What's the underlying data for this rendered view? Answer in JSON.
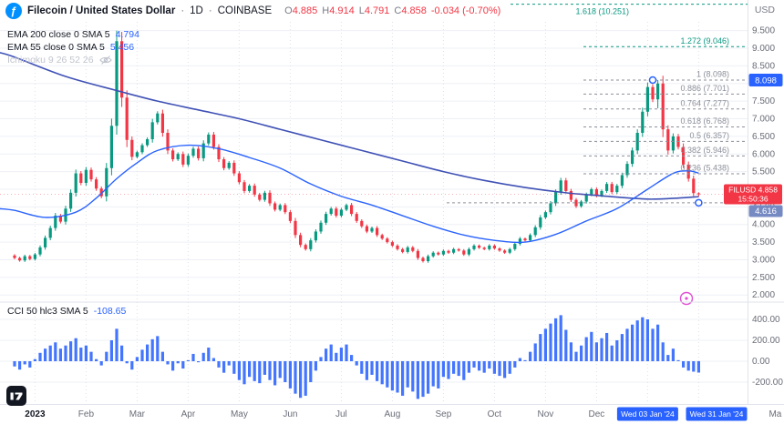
{
  "header": {
    "logo_glyph": "ƒ",
    "title": "Filecoin / United States Dollar",
    "dot1": "·",
    "timeframe": "1D",
    "dot2": "·",
    "exchange": "COINBASE",
    "ohlc": {
      "o_label": "O",
      "o": "4.885",
      "h_label": "H",
      "h": "4.914",
      "l_label": "L",
      "l": "4.791",
      "c_label": "C",
      "c": "4.858",
      "change": "-0.034 (-0.70%)"
    },
    "currency": "USD"
  },
  "legend": {
    "ema200": {
      "text": "EMA 200 close 0 SMA 5",
      "value": "4.794"
    },
    "ema55": {
      "text": "EMA 55 close 0 SMA 5",
      "value": "5.456"
    },
    "ichimoku": {
      "text": "Ichimoku 9 26 52 26"
    },
    "cci": {
      "text": "CCI 50 hlc3 SMA 5",
      "value": "-108.65"
    }
  },
  "colors": {
    "up": "#089981",
    "down": "#f23645",
    "ema55": "#2962ff",
    "ema200": "#3f51b5",
    "cci": "#2962ff",
    "grid": "#eef0f6",
    "grid_v": "#dfe2ea",
    "border": "#e0e3eb",
    "axis_text": "#6a6d78",
    "fib_gray": "#8c8f9a",
    "fib_green": "#089981",
    "badge_blue": "#2962ff",
    "badge_red": "#f23645",
    "badge_fib0": "#7589c2",
    "time_badge": "#2962ff",
    "marker_magenta": "#e04fd4"
  },
  "chart_data": {
    "type": "candlestick",
    "symbol": "FILUSD",
    "timeframe": "1D",
    "exchange": "COINBASE",
    "last_price": 4.858,
    "countdown": "15:50:36",
    "price_axis_range": [
      2.0,
      9.5
    ],
    "price_ticks": [
      "9.500",
      "9.000",
      "8.500",
      "8.000",
      "7.500",
      "7.000",
      "6.500",
      "6.000",
      "5.500",
      "5.000",
      "4.500",
      "4.000",
      "3.500",
      "3.000",
      "2.500",
      "2.000"
    ],
    "cci_ticks": [
      "400.00",
      "200.00",
      "0.00",
      "-200.00"
    ],
    "first_open": 3.12,
    "closes": [
      3.05,
      2.98,
      3.1,
      3.02,
      3.15,
      3.35,
      3.62,
      3.9,
      4.25,
      4.08,
      4.45,
      4.9,
      5.45,
      5.18,
      5.55,
      5.28,
      5.02,
      4.8,
      5.6,
      6.8,
      9.2,
      7.6,
      6.4,
      5.92,
      6.05,
      6.25,
      6.42,
      6.9,
      7.15,
      6.6,
      6.1,
      5.85,
      6.0,
      5.7,
      5.95,
      6.15,
      5.88,
      6.3,
      6.55,
      6.2,
      5.85,
      5.6,
      5.75,
      5.45,
      5.2,
      4.95,
      5.1,
      4.85,
      4.7,
      4.9,
      4.6,
      4.42,
      4.55,
      4.35,
      4.1,
      3.7,
      3.42,
      3.3,
      3.55,
      3.8,
      4.05,
      4.3,
      4.45,
      4.25,
      4.42,
      4.55,
      4.3,
      4.1,
      3.95,
      3.8,
      3.9,
      3.7,
      3.6,
      3.5,
      3.4,
      3.3,
      3.22,
      3.35,
      3.25,
      3.05,
      2.96,
      3.1,
      3.2,
      3.15,
      3.25,
      3.2,
      3.3,
      3.26,
      3.15,
      3.3,
      3.4,
      3.34,
      3.3,
      3.4,
      3.32,
      3.26,
      3.2,
      3.3,
      3.45,
      3.6,
      3.55,
      3.7,
      3.92,
      4.2,
      4.35,
      4.6,
      4.92,
      5.25,
      4.95,
      4.7,
      4.52,
      4.65,
      4.85,
      5.0,
      4.82,
      4.95,
      5.15,
      4.92,
      5.1,
      5.4,
      5.72,
      6.1,
      6.6,
      7.2,
      7.9,
      7.55,
      8.0,
      6.7,
      6.1,
      6.5,
      6.2,
      5.7,
      5.3,
      4.89,
      4.858
    ],
    "candle_overrides": {
      "20": [
        6.8,
        9.5,
        6.55,
        9.2
      ],
      "126": [
        7.55,
        8.098,
        7.3,
        8.0
      ],
      "134": [
        4.885,
        4.914,
        4.791,
        4.858
      ]
    },
    "ema200_points": [
      [
        -3,
        8.88
      ],
      [
        0,
        8.75
      ],
      [
        10,
        8.2
      ],
      [
        20,
        7.8
      ],
      [
        28,
        7.5
      ],
      [
        36,
        7.25
      ],
      [
        44,
        7.0
      ],
      [
        52,
        6.7
      ],
      [
        60,
        6.4
      ],
      [
        68,
        6.1
      ],
      [
        76,
        5.8
      ],
      [
        84,
        5.5
      ],
      [
        92,
        5.25
      ],
      [
        100,
        5.05
      ],
      [
        108,
        4.9
      ],
      [
        116,
        4.8
      ],
      [
        124,
        4.72
      ],
      [
        130,
        4.75
      ],
      [
        134,
        4.79
      ]
    ],
    "ema55_points": [
      [
        -3,
        4.45
      ],
      [
        0,
        4.4
      ],
      [
        6,
        4.2
      ],
      [
        12,
        4.35
      ],
      [
        16,
        4.75
      ],
      [
        20,
        5.3
      ],
      [
        24,
        5.75
      ],
      [
        28,
        6.1
      ],
      [
        34,
        6.25
      ],
      [
        40,
        6.15
      ],
      [
        46,
        5.9
      ],
      [
        52,
        5.6
      ],
      [
        58,
        5.15
      ],
      [
        64,
        4.8
      ],
      [
        70,
        4.55
      ],
      [
        76,
        4.25
      ],
      [
        82,
        3.95
      ],
      [
        88,
        3.7
      ],
      [
        94,
        3.55
      ],
      [
        100,
        3.5
      ],
      [
        106,
        3.72
      ],
      [
        112,
        4.1
      ],
      [
        118,
        4.45
      ],
      [
        124,
        5.0
      ],
      [
        129,
        5.45
      ],
      [
        132,
        5.52
      ],
      [
        134,
        5.456
      ]
    ],
    "cci_values": [
      -50,
      -80,
      -30,
      -60,
      20,
      80,
      120,
      150,
      180,
      120,
      150,
      190,
      220,
      130,
      150,
      90,
      20,
      -40,
      90,
      200,
      310,
      150,
      -20,
      -80,
      40,
      110,
      160,
      210,
      240,
      90,
      -30,
      -90,
      -20,
      -70,
      10,
      70,
      -10,
      80,
      130,
      30,
      -60,
      -110,
      -40,
      -120,
      -180,
      -220,
      -150,
      -190,
      -210,
      -130,
      -180,
      -230,
      -160,
      -200,
      -260,
      -310,
      -350,
      -330,
      -200,
      -90,
      40,
      120,
      160,
      80,
      130,
      160,
      60,
      -40,
      -120,
      -180,
      -130,
      -190,
      -220,
      -250,
      -280,
      -300,
      -330,
      -250,
      -290,
      -360,
      -340,
      -310,
      -240,
      -260,
      -150,
      -170,
      -120,
      -140,
      -180,
      -110,
      -60,
      -90,
      -110,
      -70,
      -120,
      -140,
      -160,
      -120,
      -60,
      30,
      10,
      90,
      170,
      260,
      310,
      360,
      410,
      440,
      300,
      180,
      90,
      150,
      230,
      280,
      180,
      220,
      270,
      150,
      200,
      260,
      310,
      350,
      390,
      420,
      400,
      310,
      350,
      180,
      60,
      120,
      10,
      -60,
      -90,
      -100,
      -108.65
    ],
    "fib_levels": [
      {
        "ratio": "1.618",
        "value": 10.251,
        "label": "1.618 (10.251)",
        "green": true
      },
      {
        "ratio": "1.272",
        "value": 9.046,
        "label": "1.272 (9.046)",
        "green": true
      },
      {
        "ratio": "1",
        "value": 8.098,
        "label": "1 (8.098)"
      },
      {
        "ratio": "0.886",
        "value": 7.701,
        "label": "0.886 (7.701)"
      },
      {
        "ratio": "0.764",
        "value": 7.277,
        "label": "0.764 (7.277)"
      },
      {
        "ratio": "0.618",
        "value": 6.768,
        "label": "0.618 (6.768)"
      },
      {
        "ratio": "0.5",
        "value": 6.357,
        "label": "0.5 (6.357)"
      },
      {
        "ratio": "0.382",
        "value": 5.946,
        "label": "0.382 (5.946)"
      },
      {
        "ratio": "0.236",
        "value": 5.438,
        "label": "0.236 (5.438)"
      },
      {
        "ratio": "0",
        "value": 4.616,
        "label": ""
      }
    ],
    "price_badges": {
      "fib_high": {
        "text": "8.098",
        "price": 8.098
      },
      "fib_low": {
        "text": "4.616",
        "price": 4.616
      },
      "last": {
        "symbol": "FILUSD",
        "text": "4.858",
        "price": 4.858,
        "countdown": "15:50:36"
      }
    },
    "anchors": [
      {
        "idx": 125,
        "price": 8.098
      },
      {
        "idx": 134,
        "price": 4.616
      }
    ],
    "grid_idx": [
      4,
      14,
      24,
      34,
      44,
      54,
      64,
      74,
      84,
      94,
      104,
      114,
      124,
      134
    ],
    "time_labels": [
      {
        "label": "2023",
        "idx": 4,
        "strong": true
      },
      {
        "label": "Feb",
        "idx": 14
      },
      {
        "label": "Mar",
        "idx": 24
      },
      {
        "label": "Apr",
        "idx": 34
      },
      {
        "label": "May",
        "idx": 44
      },
      {
        "label": "Jun",
        "idx": 54
      },
      {
        "label": "Jul",
        "idx": 64
      },
      {
        "label": "Aug",
        "idx": 74
      },
      {
        "label": "Sep",
        "idx": 84
      },
      {
        "label": "Oct",
        "idx": 94
      },
      {
        "label": "Nov",
        "idx": 104
      },
      {
        "label": "Dec",
        "idx": 114
      },
      {
        "label": "Ma",
        "idx": 149
      }
    ],
    "time_badges": [
      {
        "text": "Wed 03 Jan '24",
        "idx": 124
      },
      {
        "text": "Wed 31 Jan '24",
        "idx": 137.5
      }
    ]
  }
}
